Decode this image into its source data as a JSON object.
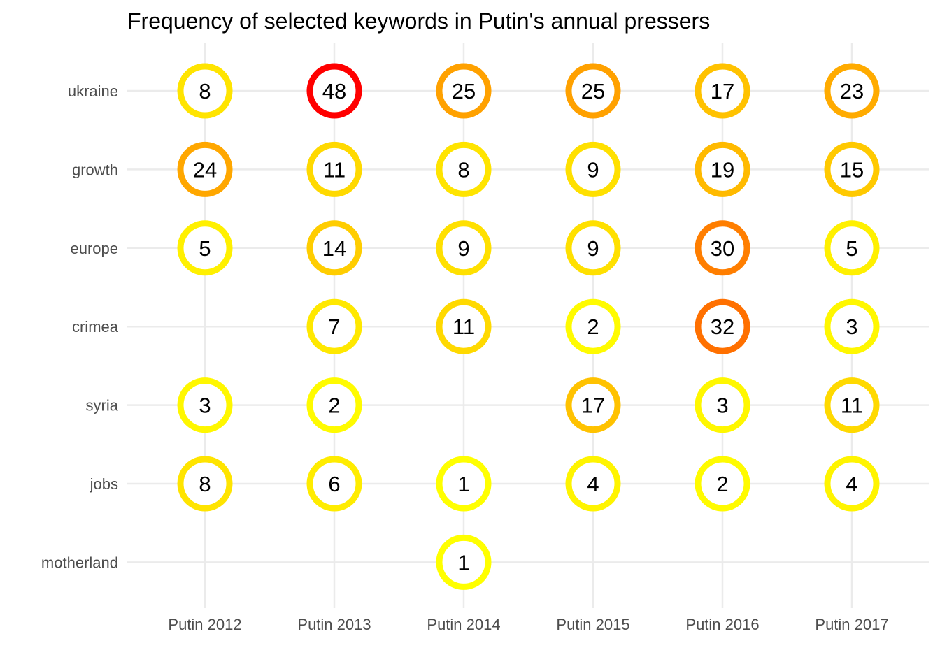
{
  "chart_data": {
    "type": "scatter",
    "title": "Frequency of selected keywords in Putin's annual pressers",
    "xlabel": "",
    "ylabel": "",
    "grid": true,
    "legend": "none",
    "x_categories": [
      "Putin 2012",
      "Putin 2013",
      "Putin 2014",
      "Putin 2015",
      "Putin 2016",
      "Putin 2017"
    ],
    "y_categories": [
      "ukraine",
      "growth",
      "europe",
      "crimea",
      "syria",
      "jobs",
      "motherland"
    ],
    "points": [
      {
        "x": "Putin 2012",
        "y": "ukraine",
        "value": 8
      },
      {
        "x": "Putin 2013",
        "y": "ukraine",
        "value": 48
      },
      {
        "x": "Putin 2014",
        "y": "ukraine",
        "value": 25
      },
      {
        "x": "Putin 2015",
        "y": "ukraine",
        "value": 25
      },
      {
        "x": "Putin 2016",
        "y": "ukraine",
        "value": 17
      },
      {
        "x": "Putin 2017",
        "y": "ukraine",
        "value": 23
      },
      {
        "x": "Putin 2012",
        "y": "growth",
        "value": 24
      },
      {
        "x": "Putin 2013",
        "y": "growth",
        "value": 11
      },
      {
        "x": "Putin 2014",
        "y": "growth",
        "value": 8
      },
      {
        "x": "Putin 2015",
        "y": "growth",
        "value": 9
      },
      {
        "x": "Putin 2016",
        "y": "growth",
        "value": 19
      },
      {
        "x": "Putin 2017",
        "y": "growth",
        "value": 15
      },
      {
        "x": "Putin 2012",
        "y": "europe",
        "value": 5
      },
      {
        "x": "Putin 2013",
        "y": "europe",
        "value": 14
      },
      {
        "x": "Putin 2014",
        "y": "europe",
        "value": 9
      },
      {
        "x": "Putin 2015",
        "y": "europe",
        "value": 9
      },
      {
        "x": "Putin 2016",
        "y": "europe",
        "value": 30
      },
      {
        "x": "Putin 2017",
        "y": "europe",
        "value": 5
      },
      {
        "x": "Putin 2013",
        "y": "crimea",
        "value": 7
      },
      {
        "x": "Putin 2014",
        "y": "crimea",
        "value": 11
      },
      {
        "x": "Putin 2015",
        "y": "crimea",
        "value": 2
      },
      {
        "x": "Putin 2016",
        "y": "crimea",
        "value": 32
      },
      {
        "x": "Putin 2017",
        "y": "crimea",
        "value": 3
      },
      {
        "x": "Putin 2012",
        "y": "syria",
        "value": 3
      },
      {
        "x": "Putin 2013",
        "y": "syria",
        "value": 2
      },
      {
        "x": "Putin 2015",
        "y": "syria",
        "value": 17
      },
      {
        "x": "Putin 2016",
        "y": "syria",
        "value": 3
      },
      {
        "x": "Putin 2017",
        "y": "syria",
        "value": 11
      },
      {
        "x": "Putin 2012",
        "y": "jobs",
        "value": 8
      },
      {
        "x": "Putin 2013",
        "y": "jobs",
        "value": 6
      },
      {
        "x": "Putin 2014",
        "y": "jobs",
        "value": 1
      },
      {
        "x": "Putin 2015",
        "y": "jobs",
        "value": 4
      },
      {
        "x": "Putin 2016",
        "y": "jobs",
        "value": 2
      },
      {
        "x": "Putin 2017",
        "y": "jobs",
        "value": 4
      },
      {
        "x": "Putin 2014",
        "y": "motherland",
        "value": 1
      }
    ],
    "color_scale": {
      "low": "#ffff00",
      "mid": "#ffa500",
      "high": "#ff0000",
      "domain": [
        1,
        48
      ]
    }
  }
}
